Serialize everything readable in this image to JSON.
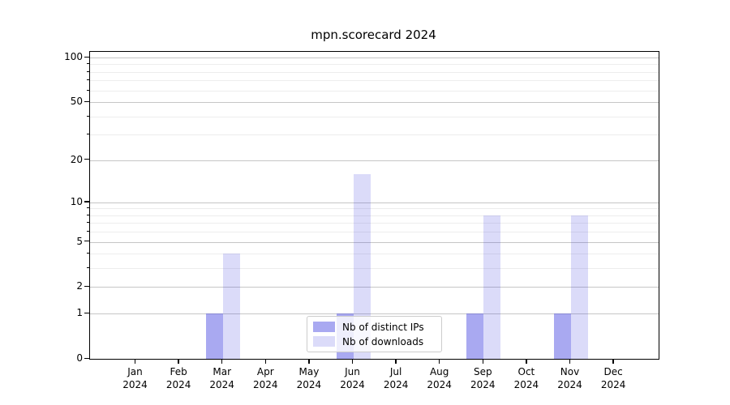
{
  "title": "mpn.scorecard 2024",
  "chart_data": {
    "type": "bar",
    "title": "mpn.scorecard 2024",
    "y_scale": "log10(1+x)",
    "categories": [
      "Jan",
      "Feb",
      "Mar",
      "Apr",
      "May",
      "Jun",
      "Jul",
      "Aug",
      "Sep",
      "Oct",
      "Nov",
      "Dec"
    ],
    "category_year": "2024",
    "series": [
      {
        "name": "Nb of distinct IPs",
        "color": "rgba(64,64,224,0.45)",
        "color_hex_on_white": "#a8a8f2",
        "values": [
          0,
          0,
          1,
          0,
          0,
          1,
          0,
          0,
          1,
          0,
          1,
          0
        ]
      },
      {
        "name": "Nb of downloads",
        "color": "rgba(64,64,224,0.19)",
        "color_hex_on_white": "#d9d9f9",
        "values": [
          0,
          0,
          4,
          0,
          0,
          16,
          0,
          0,
          8,
          0,
          8,
          0
        ]
      }
    ],
    "yticks_major": [
      0,
      1,
      2,
      5,
      10,
      20,
      50,
      100
    ],
    "yticks_minor": [
      3,
      4,
      6,
      7,
      8,
      9,
      30,
      40,
      60,
      70,
      80,
      90
    ],
    "ylim": [
      0,
      110
    ],
    "xlabel": "",
    "ylabel": "",
    "grid": "horizontal",
    "legend_position": "bottom-center-inside"
  }
}
